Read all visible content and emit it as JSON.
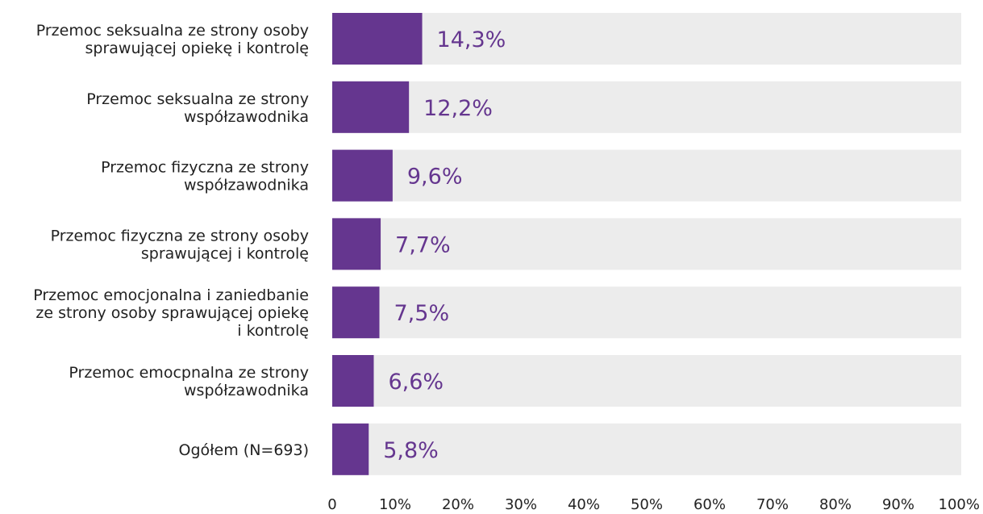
{
  "chart_data": {
    "type": "bar",
    "orientation": "horizontal",
    "categories": [
      [
        "Przemoc seksualna ze strony osoby",
        "sprawującej opiekę i kontrolę"
      ],
      [
        "Przemoc seksualna ze strony",
        "współzawodnika"
      ],
      [
        "Przemoc fizyczna ze strony",
        "współzawodnika"
      ],
      [
        "Przemoc fizyczna ze strony osoby",
        "sprawującej i kontrolę"
      ],
      [
        "Przemoc emocjonalna i zaniedbanie",
        "ze strony osoby sprawującej opiekę",
        "i kontrolę"
      ],
      [
        "Przemoc emocpnalna ze strony",
        "współzawodnika"
      ],
      [
        "Ogółem (N=693)"
      ]
    ],
    "values": [
      14.3,
      12.2,
      9.6,
      7.7,
      7.5,
      6.6,
      5.8
    ],
    "value_labels": [
      "14,3%",
      "12,2%",
      "9,6%",
      "7,7%",
      "7,5%",
      "6,6%",
      "5,8%"
    ],
    "xlim": [
      0,
      100
    ],
    "x_ticks": [
      0,
      10,
      20,
      30,
      40,
      50,
      60,
      70,
      80,
      90,
      100
    ],
    "x_tick_labels": [
      "0",
      "10%",
      "20%",
      "30%",
      "40%",
      "50%",
      "60%",
      "70%",
      "80%",
      "90%",
      "100%"
    ],
    "grid": false,
    "colors": {
      "bar": "#65368f",
      "track": "#ececec",
      "value_text": "#65368f"
    }
  }
}
